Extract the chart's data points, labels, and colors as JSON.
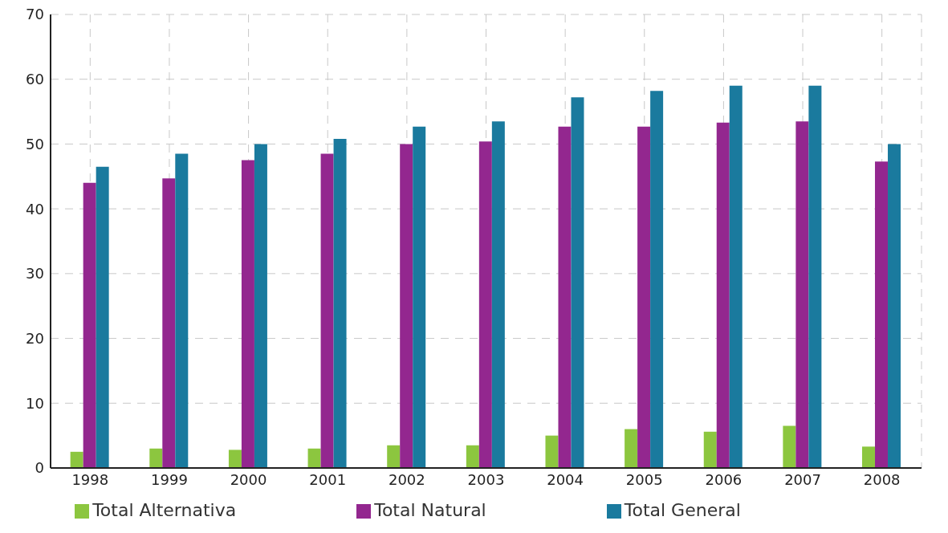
{
  "chart_data": {
    "type": "bar",
    "categories": [
      "1998",
      "1999",
      "2000",
      "2001",
      "2002",
      "2003",
      "2004",
      "2005",
      "2006",
      "2007",
      "2008"
    ],
    "series": [
      {
        "name": "Total Alternativa",
        "color": "#8cc63f",
        "values": [
          2.5,
          3,
          2.8,
          3,
          3.5,
          3.5,
          5,
          6,
          5.6,
          6.5,
          3.3
        ]
      },
      {
        "name": "Total Natural",
        "color": "#93278f",
        "values": [
          44,
          44.7,
          47.5,
          48.5,
          50,
          50.4,
          52.7,
          52.7,
          53.3,
          53.5,
          47.3
        ]
      },
      {
        "name": "Total General",
        "color": "#1a7a9e",
        "values": [
          46.5,
          48.5,
          50,
          50.8,
          52.7,
          53.5,
          57.2,
          58.2,
          59,
          59,
          50
        ]
      }
    ],
    "ylim": [
      0,
      70
    ],
    "yticks": [
      0,
      10,
      20,
      30,
      40,
      50,
      60,
      70
    ],
    "grid": true,
    "legend": "bottom"
  }
}
